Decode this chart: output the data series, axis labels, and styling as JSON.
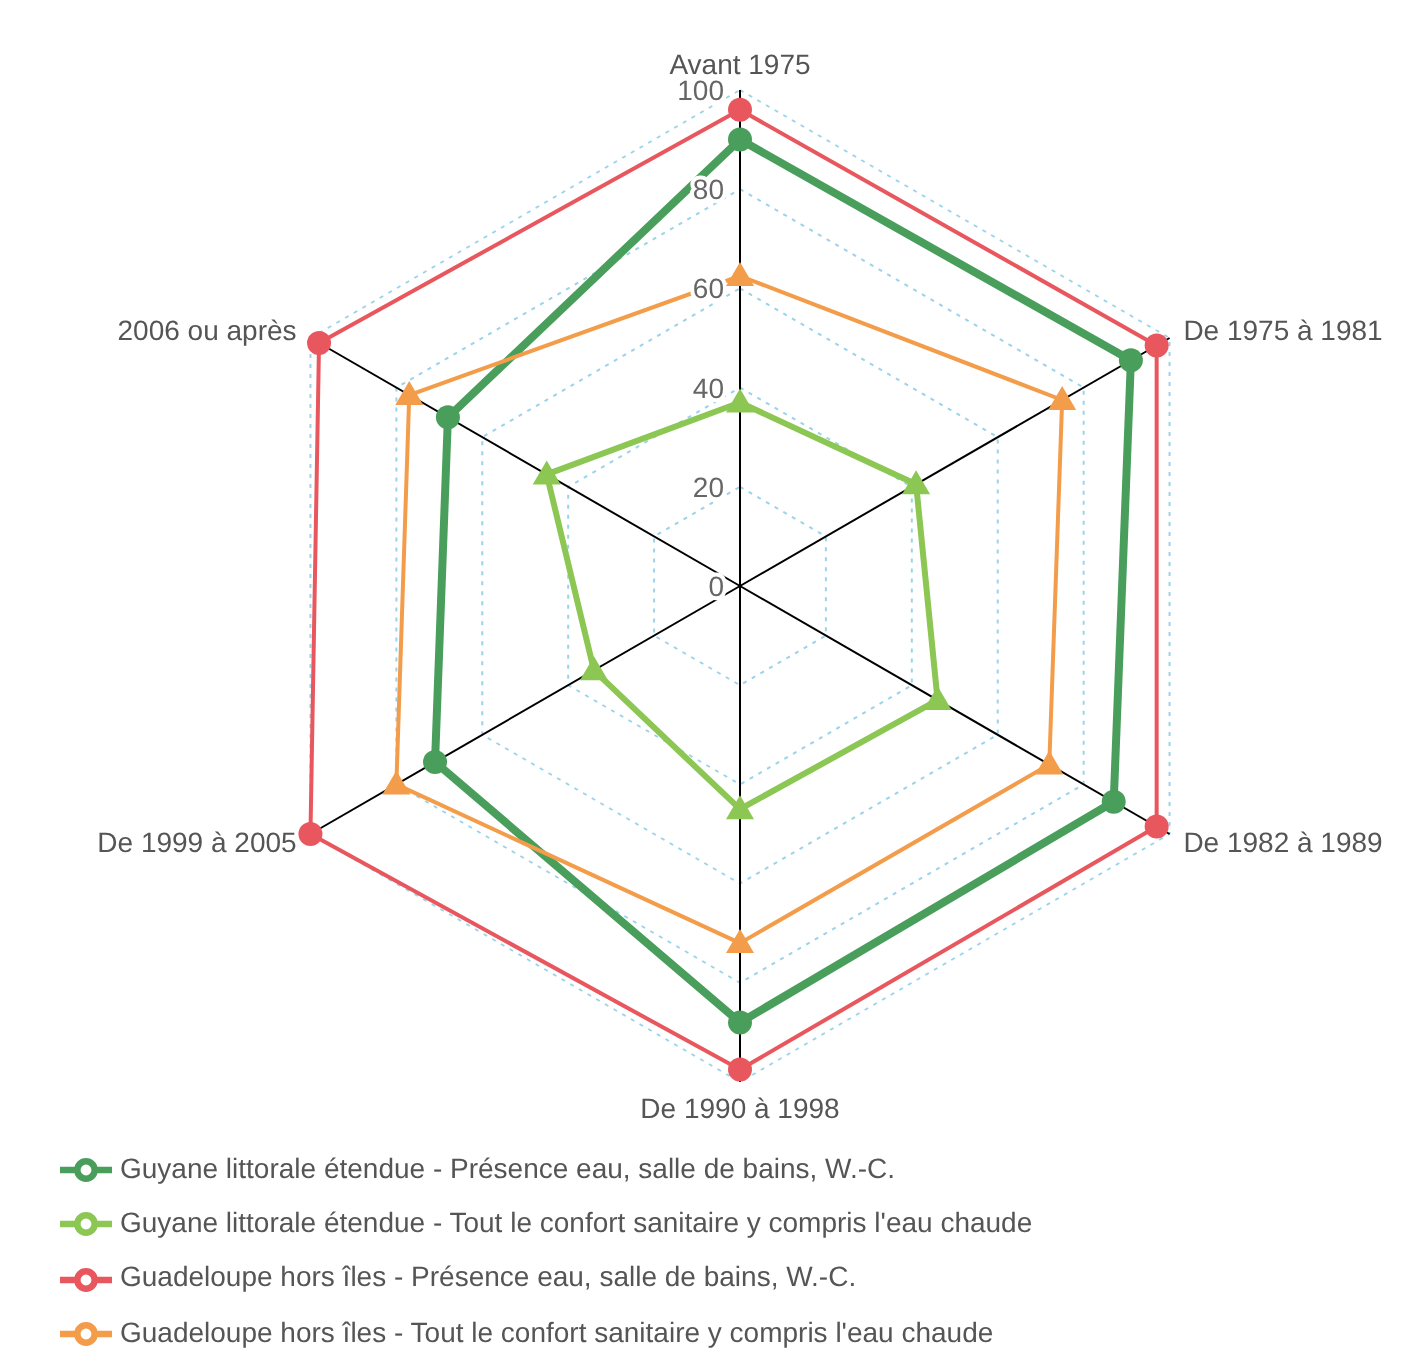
{
  "chart_data": {
    "type": "radar",
    "categories": [
      "Avant 1975",
      "De 1975 à 1981",
      "De 1982 à 1989",
      "De 1990 à 1998",
      "De 1999 à 2005",
      "2006 ou après"
    ],
    "ylim": [
      0,
      100
    ],
    "yticks": [
      0,
      20,
      40,
      60,
      80,
      100
    ],
    "grid": true,
    "legend": "bottom",
    "series": [
      {
        "name": "Guyane littorale étendue - Présence eau, salle de bains, W.-C.",
        "color": "#4a9e5c",
        "marker": "circle",
        "values": [
          90,
          91,
          87,
          88,
          71,
          68
        ]
      },
      {
        "name": "Guyane littorale étendue - Tout le confort sanitaire y compris l'eau chaude",
        "color": "#8cc653",
        "marker": "triangle",
        "values": [
          37,
          41,
          46,
          45,
          34,
          45
        ]
      },
      {
        "name": "Guadeloupe hors îles - Présence eau, salle de bains, W.-C.",
        "color": "#e8575e",
        "marker": "circle",
        "values": [
          96,
          97,
          97,
          97.5,
          100,
          98
        ]
      },
      {
        "name": "Guadeloupe hors îles - Tout le confort sanitaire y compris l'eau chaude",
        "color": "#f39c4a",
        "marker": "triangle",
        "values": [
          62.5,
          75,
          72,
          72,
          80,
          77
        ]
      }
    ]
  }
}
